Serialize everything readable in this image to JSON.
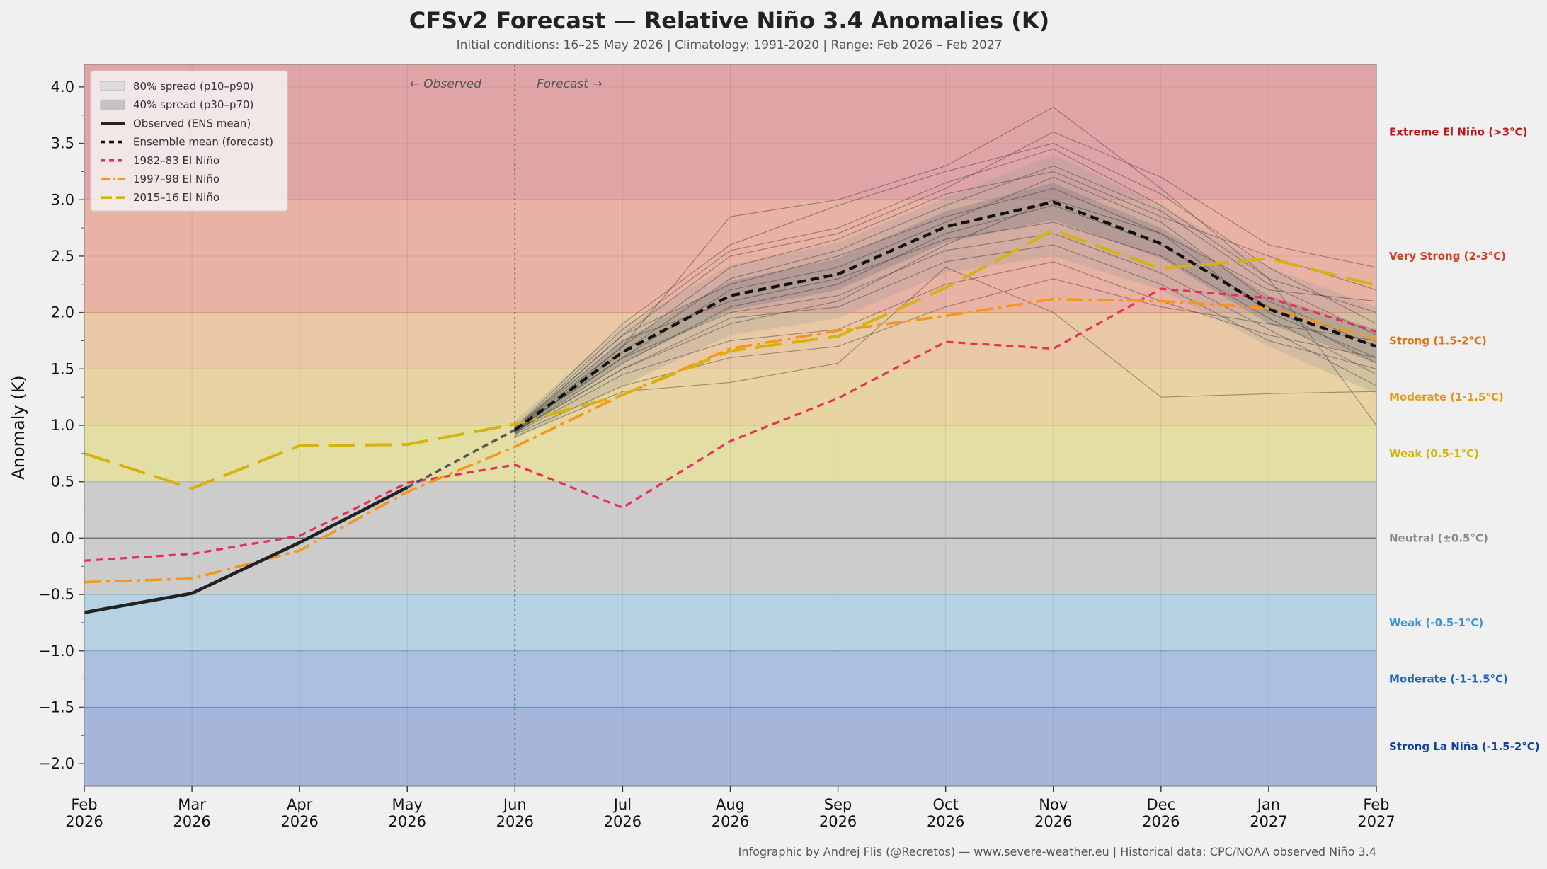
{
  "chart_data": {
    "type": "line",
    "title": "CFSv2 Forecast — Relative Niño 3.4 Anomalies (K)",
    "subtitle": "Initial conditions: 16–25 May 2026  |  Climatology: 1991-2020  |  Range: Feb 2026 – Feb 2027",
    "ylabel": "Anomaly (K)",
    "xlabel": "",
    "ylim": [
      -2.2,
      4.2
    ],
    "x_ticks": [
      {
        "month": "Feb",
        "year": "2026"
      },
      {
        "month": "Mar",
        "year": "2026"
      },
      {
        "month": "Apr",
        "year": "2026"
      },
      {
        "month": "May",
        "year": "2026"
      },
      {
        "month": "Jun",
        "year": "2026"
      },
      {
        "month": "Jul",
        "year": "2026"
      },
      {
        "month": "Aug",
        "year": "2026"
      },
      {
        "month": "Sep",
        "year": "2026"
      },
      {
        "month": "Oct",
        "year": "2026"
      },
      {
        "month": "Nov",
        "year": "2026"
      },
      {
        "month": "Dec",
        "year": "2026"
      },
      {
        "month": "Jan",
        "year": "2027"
      },
      {
        "month": "Feb",
        "year": "2027"
      }
    ],
    "y_ticks": [
      "4.0",
      "3.5",
      "3.0",
      "2.5",
      "2.0",
      "1.5",
      "1.0",
      "0.5",
      "0.0",
      "−0.5",
      "−1.0",
      "−1.5",
      "−2.0"
    ],
    "y_tick_values": [
      4.0,
      3.5,
      3.0,
      2.5,
      2.0,
      1.5,
      1.0,
      0.5,
      0.0,
      -0.5,
      -1.0,
      -1.5,
      -2.0
    ],
    "grid": true,
    "legend_position": "top-left",
    "annotations": {
      "observed": "← Observed",
      "forecast": "Forecast →"
    },
    "split_month": "Jun 2026",
    "zones": [
      {
        "label": "Extreme El Niño (>3°C)",
        "from": 3.0,
        "to": 4.2,
        "fill": "#dfa4a6",
        "text_color": "#c0141b"
      },
      {
        "label": "Very Strong (2-3°C)",
        "from": 2.0,
        "to": 3.0,
        "fill": "#e8b2a4",
        "text_color": "#d63b1b"
      },
      {
        "label": "Strong (1.5-2°C)",
        "from": 1.5,
        "to": 2.0,
        "fill": "#e9c9a5",
        "text_color": "#e8700f"
      },
      {
        "label": "Moderate (1-1.5°C)",
        "from": 1.0,
        "to": 1.5,
        "fill": "#e8d3a3",
        "text_color": "#e89a0f"
      },
      {
        "label": "Weak (0.5-1°C)",
        "from": 0.5,
        "to": 1.0,
        "fill": "#e3dea4",
        "text_color": "#d4b30f"
      },
      {
        "label": "Neutral (±0.5°C)",
        "from": -0.5,
        "to": 0.5,
        "fill": "#cccccc",
        "text_color": "#888888"
      },
      {
        "label": "Weak (-0.5-1°C)",
        "from": -1.0,
        "to": -0.5,
        "fill": "#b4d2e2",
        "text_color": "#3a95d4"
      },
      {
        "label": "Moderate (-1-1.5°C)",
        "from": -1.5,
        "to": -1.0,
        "fill": "#abc0de",
        "text_color": "#1f63c4"
      },
      {
        "label": "Strong La Niña (-1.5-2°C)",
        "from": -2.2,
        "to": -1.5,
        "fill": "#a6b6da",
        "text_color": "#0f3ea8"
      }
    ],
    "legend": [
      {
        "label": "80% spread (p10–p90)",
        "kind": "patch",
        "color": "#dcdcdc"
      },
      {
        "label": "40% spread (p30–p70)",
        "kind": "patch",
        "color": "#c4c4c4"
      },
      {
        "label": "Observed (ENS mean)",
        "kind": "line",
        "color": "#222222",
        "dash": "none"
      },
      {
        "label": "Ensemble mean (forecast)",
        "kind": "line",
        "color": "#111111",
        "dash": "10,6"
      },
      {
        "label": "1982–83 El Niño",
        "kind": "line",
        "color": "#e6305a",
        "dash": "10,6"
      },
      {
        "label": "1997–98 El Niño",
        "kind": "line",
        "color": "#f6961c",
        "dash": "22,6,4,6"
      },
      {
        "label": "2015–16 El Niño",
        "kind": "line",
        "color": "#d4b30f",
        "dash": "34,12"
      }
    ],
    "series": [
      {
        "name": "Observed (ENS mean)",
        "color": "#222222",
        "x": [
          0,
          1,
          2,
          3
        ],
        "values": [
          -0.66,
          -0.49,
          -0.04,
          0.45
        ]
      },
      {
        "name": "Ensemble mean (forecast)",
        "color": "#111111",
        "x": [
          4,
          5,
          6,
          7,
          8,
          9,
          10,
          11,
          12
        ],
        "values": [
          0.96,
          1.65,
          2.15,
          2.34,
          2.76,
          2.98,
          2.61,
          2.03,
          1.7
        ]
      },
      {
        "name": "1982–83 El Niño",
        "color": "#e6305a",
        "x": [
          0,
          1,
          2,
          3,
          4,
          5,
          6,
          7,
          8,
          9,
          10,
          11,
          12
        ],
        "values": [
          -0.2,
          -0.14,
          0.02,
          0.49,
          0.65,
          0.27,
          0.86,
          1.24,
          1.74,
          1.68,
          2.21,
          2.13,
          1.83
        ]
      },
      {
        "name": "1997–98 El Niño",
        "color": "#f6961c",
        "x": [
          0,
          1,
          2,
          3,
          4,
          5,
          6,
          7,
          8,
          9,
          10,
          11,
          12
        ],
        "values": [
          -0.39,
          -0.36,
          -0.11,
          0.41,
          0.81,
          1.27,
          1.68,
          1.84,
          1.97,
          2.12,
          2.1,
          2.04,
          1.76
        ]
      },
      {
        "name": "2015–16 El Niño",
        "color": "#d4b30f",
        "x": [
          0,
          1,
          2,
          3,
          4,
          5,
          6,
          7,
          8,
          9,
          10,
          11,
          12
        ],
        "values": [
          0.75,
          0.44,
          0.82,
          0.83,
          1.01,
          1.27,
          1.66,
          1.79,
          2.22,
          2.73,
          2.39,
          2.48,
          2.24
        ]
      }
    ],
    "bridge": {
      "x": [
        3,
        4
      ],
      "values": [
        0.45,
        0.96
      ]
    },
    "spread": {
      "x": [
        4,
        5,
        6,
        7,
        8,
        9,
        10,
        11,
        12
      ],
      "p10": [
        0.88,
        1.35,
        1.8,
        1.95,
        2.35,
        2.5,
        2.2,
        1.7,
        1.28
      ],
      "p90": [
        1.04,
        1.88,
        2.42,
        2.62,
        3.02,
        3.4,
        2.95,
        2.4,
        2.05
      ],
      "p30": [
        0.93,
        1.55,
        2.02,
        2.2,
        2.62,
        2.82,
        2.48,
        1.9,
        1.55
      ],
      "p70": [
        0.99,
        1.75,
        2.28,
        2.48,
        2.9,
        3.15,
        2.75,
        2.15,
        1.85
      ]
    },
    "members": [
      {
        "x": [
          4,
          5,
          6,
          7,
          8,
          9,
          10,
          11,
          12
        ],
        "values": [
          0.92,
          1.7,
          2.85,
          3.0,
          3.3,
          3.82,
          3.1,
          2.3,
          1.0
        ]
      },
      {
        "x": [
          4,
          5,
          6,
          7,
          8,
          9,
          10,
          11,
          12
        ],
        "values": [
          0.9,
          1.3,
          1.38,
          1.55,
          2.4,
          2.0,
          1.25,
          1.28,
          1.3
        ]
      },
      {
        "x": [
          4,
          5,
          6,
          7,
          8,
          9,
          10,
          11,
          12
        ],
        "values": [
          0.95,
          1.5,
          1.9,
          2.1,
          2.6,
          3.0,
          2.7,
          2.2,
          2.1
        ]
      },
      {
        "x": [
          4,
          5,
          6,
          7,
          8,
          9,
          10,
          11,
          12
        ],
        "values": [
          0.96,
          1.8,
          2.5,
          2.7,
          3.1,
          3.6,
          3.2,
          2.6,
          2.4
        ]
      },
      {
        "x": [
          4,
          5,
          6,
          7,
          8,
          9,
          10,
          11,
          12
        ],
        "values": [
          0.97,
          1.6,
          2.2,
          2.4,
          2.8,
          3.2,
          2.8,
          2.1,
          1.7
        ]
      },
      {
        "x": [
          4,
          5,
          6,
          7,
          8,
          9,
          10,
          11,
          12
        ],
        "values": [
          0.93,
          1.45,
          1.75,
          1.85,
          2.25,
          2.45,
          2.1,
          1.8,
          1.6
        ]
      },
      {
        "x": [
          4,
          5,
          6,
          7,
          8,
          9,
          10,
          11,
          12
        ],
        "values": [
          0.98,
          1.9,
          2.6,
          2.95,
          3.25,
          3.5,
          3.05,
          2.4,
          1.9
        ]
      },
      {
        "x": [
          4,
          5,
          6,
          7,
          8,
          9,
          10,
          11,
          12
        ],
        "values": [
          0.94,
          1.55,
          2.05,
          2.25,
          2.7,
          2.95,
          2.6,
          2.05,
          1.55
        ]
      },
      {
        "x": [
          4,
          5,
          6,
          7,
          8,
          9,
          10,
          11,
          12
        ],
        "values": [
          0.95,
          1.65,
          2.3,
          2.55,
          2.95,
          3.3,
          2.9,
          2.25,
          1.8
        ]
      },
      {
        "x": [
          4,
          5,
          6,
          7,
          8,
          9,
          10,
          11,
          12
        ],
        "values": [
          0.96,
          1.75,
          2.1,
          2.3,
          2.65,
          2.8,
          2.5,
          1.95,
          1.45
        ]
      },
      {
        "x": [
          4,
          5,
          6,
          7,
          8,
          9,
          10,
          11,
          12
        ],
        "values": [
          0.92,
          1.35,
          1.6,
          1.7,
          2.05,
          2.3,
          2.05,
          1.9,
          1.75
        ]
      },
      {
        "x": [
          4,
          5,
          6,
          7,
          8,
          9,
          10,
          11,
          12
        ],
        "values": [
          0.97,
          1.85,
          2.55,
          2.75,
          3.15,
          3.45,
          2.95,
          2.3,
          2.0
        ]
      },
      {
        "x": [
          4,
          5,
          6,
          7,
          8,
          9,
          10,
          11,
          12
        ],
        "values": [
          0.95,
          1.6,
          2.0,
          2.15,
          2.55,
          2.7,
          2.35,
          1.85,
          1.35
        ]
      },
      {
        "x": [
          4,
          5,
          6,
          7,
          8,
          9,
          10,
          11,
          12
        ],
        "values": [
          0.96,
          1.7,
          2.4,
          2.65,
          3.05,
          3.25,
          2.85,
          2.5,
          2.2
        ]
      },
      {
        "x": [
          4,
          5,
          6,
          7,
          8,
          9,
          10,
          11,
          12
        ],
        "values": [
          0.94,
          1.5,
          1.95,
          2.05,
          2.45,
          2.6,
          2.25,
          1.75,
          1.5
        ]
      },
      {
        "x": [
          4,
          5,
          6,
          7,
          8,
          9,
          10,
          11,
          12
        ],
        "values": [
          0.97,
          1.8,
          2.25,
          2.5,
          2.85,
          3.1,
          2.7,
          2.0,
          1.6
        ]
      }
    ]
  },
  "credit": "Infographic by Andrej Flis (@Recretos) — www.severe-weather.eu  |  Historical data: CPC/NOAA observed Niño 3.4"
}
